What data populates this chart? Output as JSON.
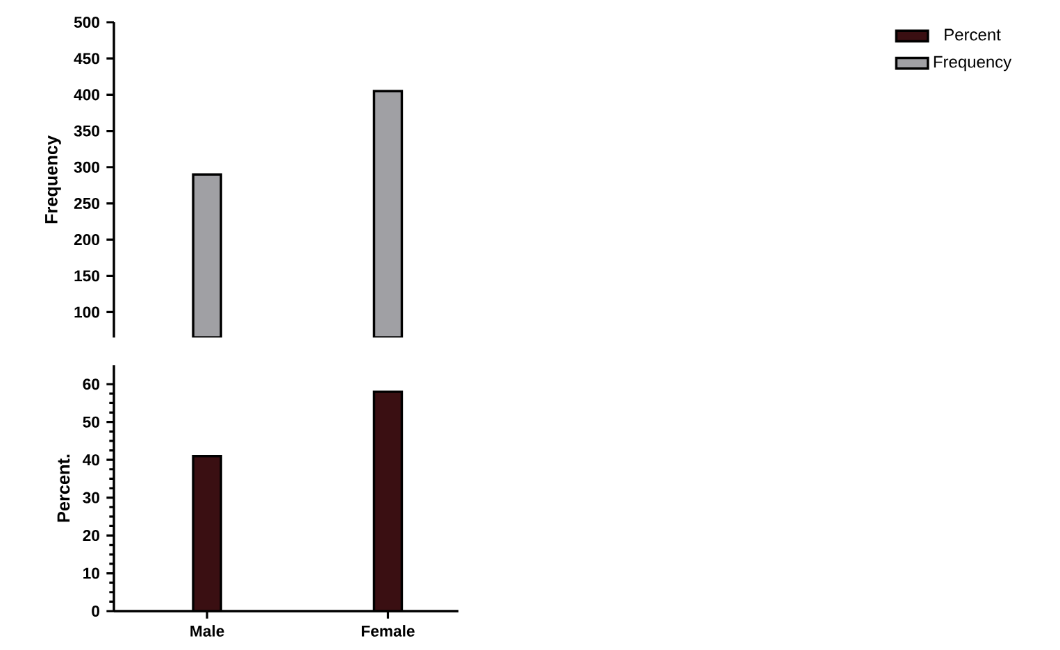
{
  "chart_data": [
    {
      "type": "bar",
      "ylabel": "Frequency",
      "categories": [
        null,
        null
      ],
      "tick_labels": "y",
      "ylim": [
        65,
        500
      ],
      "yticks": [
        100,
        150,
        200,
        250,
        300,
        350,
        400,
        450,
        500
      ],
      "series": [
        {
          "color": "#a0a0a4",
          "values": [
            290,
            405
          ]
        }
      ]
    },
    {
      "type": "bar",
      "ylabel": "Percent.",
      "categories": [
        "Male",
        "Female"
      ],
      "ylim": [
        0,
        65
      ],
      "yticks": [
        0,
        10,
        20,
        30,
        40,
        50,
        60
      ],
      "legend": "top right",
      "series": [
        {
          "name": "Percent",
          "color": "#3a0f12",
          "values": [
            41,
            58
          ]
        },
        {
          "name": "Frequency",
          "color": "#a0a0a4",
          "values": [
            null,
            null
          ]
        }
      ]
    }
  ]
}
